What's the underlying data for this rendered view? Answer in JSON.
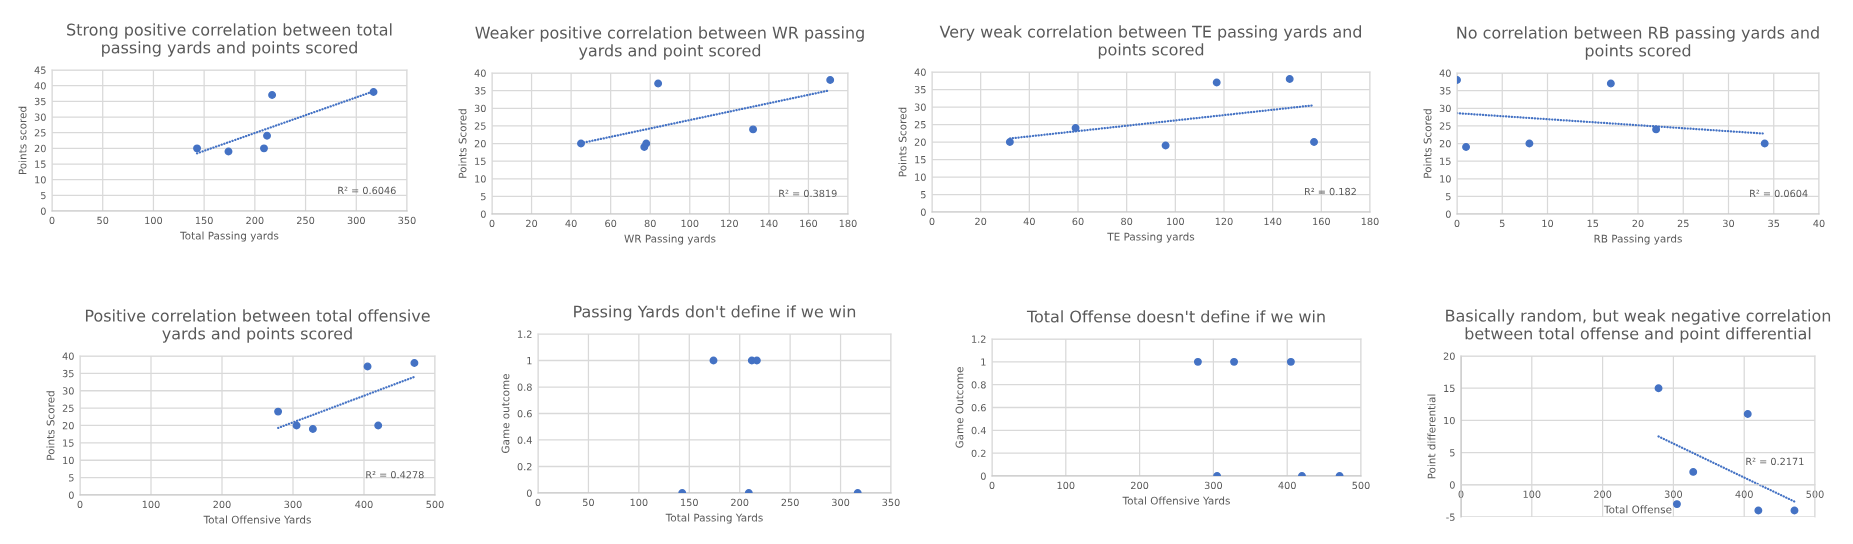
{
  "chart_data": [
    {
      "type": "scatter",
      "title": "Strong positive correlation between total passing yards and points scored",
      "xlabel": "Total Passing yards",
      "ylabel": "Points scored",
      "xlim": [
        0,
        350
      ],
      "ylim": [
        0,
        45
      ],
      "xticks": [
        0,
        50,
        100,
        150,
        200,
        250,
        300,
        350
      ],
      "yticks": [
        0,
        5,
        10,
        15,
        20,
        25,
        30,
        35,
        40,
        45
      ],
      "grid": true,
      "series": [
        {
          "marker": "circle",
          "color": "#4472c4",
          "x": [
            143,
            174,
            209,
            212,
            217,
            317
          ],
          "values": [
            20,
            19,
            20,
            24,
            37,
            38
          ]
        },
        {
          "type": "line",
          "line_style": "dotted",
          "color": "#4472c4",
          "x": [
            143,
            317
          ],
          "values": [
            18.4,
            38.2
          ]
        }
      ],
      "annotations": [
        "R² = 0.6046"
      ]
    },
    {
      "type": "scatter",
      "title": "Weaker positive correlation between WR passing yards and point scored",
      "xlabel": "WR Passing yards",
      "ylabel": "Points Scored",
      "xlim": [
        0,
        180
      ],
      "ylim": [
        0,
        40
      ],
      "xticks": [
        0,
        20,
        40,
        60,
        80,
        100,
        120,
        140,
        160,
        180
      ],
      "yticks": [
        0,
        5,
        10,
        15,
        20,
        25,
        30,
        35,
        40
      ],
      "grid": true,
      "series": [
        {
          "marker": "circle",
          "color": "#4472c4",
          "x": [
            45,
            77,
            78,
            84,
            132,
            171
          ],
          "values": [
            20,
            19,
            20,
            37,
            24,
            38
          ]
        },
        {
          "type": "line",
          "line_style": "dotted",
          "color": "#4472c4",
          "x": [
            45,
            170
          ],
          "values": [
            20.1,
            35
          ]
        }
      ],
      "annotations": [
        "R² = 0.3819"
      ]
    },
    {
      "type": "scatter",
      "title": "Very weak correlation between TE passing yards and points scored",
      "xlabel": "TE Passing yards",
      "ylabel": "Points Scored",
      "xlim": [
        0,
        180
      ],
      "ylim": [
        0,
        40
      ],
      "xticks": [
        0,
        20,
        40,
        60,
        80,
        100,
        120,
        140,
        160,
        180
      ],
      "yticks": [
        0,
        5,
        10,
        15,
        20,
        25,
        30,
        35,
        40
      ],
      "grid": true,
      "series": [
        {
          "marker": "circle",
          "color": "#4472c4",
          "x": [
            32,
            59,
            96,
            117,
            147,
            157
          ],
          "values": [
            20,
            24,
            19,
            37,
            38,
            20
          ]
        },
        {
          "type": "line",
          "line_style": "dotted",
          "color": "#4472c4",
          "x": [
            32,
            157
          ],
          "values": [
            21,
            30.5
          ]
        }
      ],
      "annotations": [
        "R² = 0.182"
      ]
    },
    {
      "type": "scatter",
      "title": "No correlation between RB passing yards and points scored",
      "xlabel": "RB Passing yards",
      "ylabel": "Points Scored",
      "xlim": [
        0,
        40
      ],
      "ylim": [
        0,
        40
      ],
      "xticks": [
        0,
        5,
        10,
        15,
        20,
        25,
        30,
        35,
        40
      ],
      "yticks": [
        0,
        5,
        10,
        15,
        20,
        25,
        30,
        35,
        40
      ],
      "grid": true,
      "series": [
        {
          "marker": "circle",
          "color": "#4472c4",
          "x": [
            0,
            1,
            8,
            17,
            22,
            34
          ],
          "values": [
            38,
            19,
            20,
            37,
            24,
            20
          ]
        },
        {
          "type": "line",
          "line_style": "dotted",
          "color": "#4472c4",
          "x": [
            0,
            34
          ],
          "values": [
            28.6,
            22.8
          ]
        }
      ],
      "annotations": [
        "R² = 0.0604"
      ]
    },
    {
      "type": "scatter",
      "title": "Positive correlation between total offensive yards and points scored",
      "xlabel": "Total Offensive Yards",
      "ylabel": "Points Scored",
      "xlim": [
        0,
        500
      ],
      "ylim": [
        0,
        40
      ],
      "xticks": [
        0,
        100,
        200,
        300,
        400,
        500
      ],
      "yticks": [
        0,
        5,
        10,
        15,
        20,
        25,
        30,
        35,
        40
      ],
      "grid": true,
      "series": [
        {
          "marker": "circle",
          "color": "#4472c4",
          "x": [
            279,
            305,
            328,
            405,
            420,
            471
          ],
          "values": [
            24,
            20,
            19,
            37,
            20,
            38
          ]
        },
        {
          "type": "line",
          "line_style": "dotted",
          "color": "#4472c4",
          "x": [
            279,
            471
          ],
          "values": [
            19.3,
            34
          ]
        }
      ],
      "annotations": [
        "R² = 0.4278"
      ]
    },
    {
      "type": "scatter",
      "title": "Passing Yards don't define if we win",
      "xlabel": "Total Passing Yards",
      "ylabel": "Game outcome",
      "xlim": [
        0,
        350
      ],
      "ylim": [
        0,
        1.2
      ],
      "xticks": [
        0,
        50,
        100,
        150,
        200,
        250,
        300,
        350
      ],
      "yticks": [
        0,
        0.2,
        0.4,
        0.6,
        0.8,
        1,
        1.2
      ],
      "grid": true,
      "marker": "circle",
      "series": [
        {
          "color": "#4472c4",
          "x": [
            143,
            174,
            209,
            212,
            217,
            317
          ],
          "values": [
            0,
            1,
            0,
            1,
            1,
            0
          ]
        }
      ]
    },
    {
      "type": "scatter",
      "title": "Total Offense doesn't define if we win",
      "xlabel": "Total Offensive Yards",
      "ylabel": "Game Outcome",
      "xlim": [
        0,
        500
      ],
      "ylim": [
        0,
        1.2
      ],
      "xticks": [
        0,
        100,
        200,
        300,
        400,
        500
      ],
      "yticks": [
        0,
        0.2,
        0.4,
        0.6,
        0.8,
        1,
        1.2
      ],
      "grid": true,
      "marker": "circle",
      "series": [
        {
          "color": "#4472c4",
          "x": [
            279,
            305,
            328,
            405,
            420,
            471
          ],
          "values": [
            1,
            0,
            1,
            1,
            0,
            0
          ]
        }
      ]
    },
    {
      "type": "scatter",
      "title": "Basically random, but weak negative correlation between total offense and point differential",
      "xlabel": "Total Offense",
      "ylabel": "Point differential",
      "xlim": [
        0,
        500
      ],
      "ylim": [
        -5,
        20
      ],
      "xticks": [
        0,
        100,
        200,
        300,
        400,
        500
      ],
      "yticks": [
        -5,
        0,
        5,
        10,
        15,
        20
      ],
      "grid": true,
      "series": [
        {
          "marker": "circle",
          "color": "#4472c4",
          "x": [
            279,
            305,
            328,
            405,
            420,
            471
          ],
          "values": [
            15,
            -3,
            2,
            11,
            -4,
            -4
          ]
        },
        {
          "type": "line",
          "line_style": "dotted",
          "color": "#4472c4",
          "x": [
            279,
            471
          ],
          "values": [
            7.5,
            -2.6
          ]
        }
      ],
      "annotations": [
        "R² = 0.2171"
      ]
    }
  ]
}
